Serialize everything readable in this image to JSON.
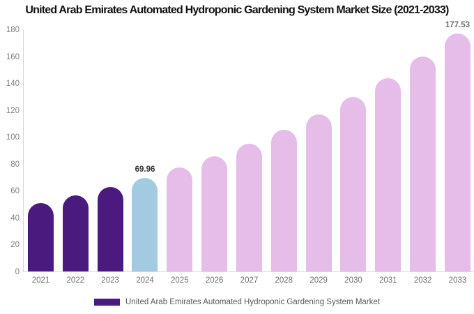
{
  "title": "United Arab Emirates Automated Hydroponic Gardening System Market Size (2021-2033)",
  "legend": {
    "label": "United Arab Emirates Automated Hydroponic Gardening System Market",
    "swatch_color": "#4A1A7F"
  },
  "colors": {
    "historical_bar": "#4A1A7F",
    "base_year_bar": "#A2CBE1",
    "forecast_bar": "#E6BDE8",
    "axis_line": "#D6D6D6",
    "y_tick_label": "#808080",
    "x_tick_label": "#6F6F6F",
    "title_text": "#111111",
    "legend_text": "#595959"
  },
  "chart_data": {
    "type": "bar",
    "title": "United Arab Emirates Automated Hydroponic Gardening System Market Size (2021-2033)",
    "categories": [
      "2021",
      "2022",
      "2023",
      "2024",
      "2025",
      "2026",
      "2027",
      "2028",
      "2029",
      "2030",
      "2031",
      "2032",
      "2033"
    ],
    "values": [
      51.29,
      56.88,
      63.08,
      69.96,
      77.59,
      86.05,
      95.43,
      105.83,
      117.37,
      130.16,
      144.35,
      160.08,
      177.53
    ],
    "bar_colors": [
      "#4A1A7F",
      "#4A1A7F",
      "#4A1A7F",
      "#A2CBE1",
      "#E6BDE8",
      "#E6BDE8",
      "#E6BDE8",
      "#E6BDE8",
      "#E6BDE8",
      "#E6BDE8",
      "#E6BDE8",
      "#E6BDE8",
      "#E6BDE8"
    ],
    "xlabel": "",
    "ylabel": "",
    "ylim": [
      0,
      180
    ],
    "yticks": [
      0,
      20,
      40,
      60,
      80,
      100,
      120,
      140,
      160,
      180
    ],
    "grid": false,
    "legend_position": "bottom",
    "data_labels": [
      {
        "category": "2024",
        "index": 3,
        "text": "69.96",
        "color": "#333333"
      },
      {
        "category": "2033",
        "index": 12,
        "text": "177.53",
        "color": "#6E6E6E"
      }
    ]
  }
}
